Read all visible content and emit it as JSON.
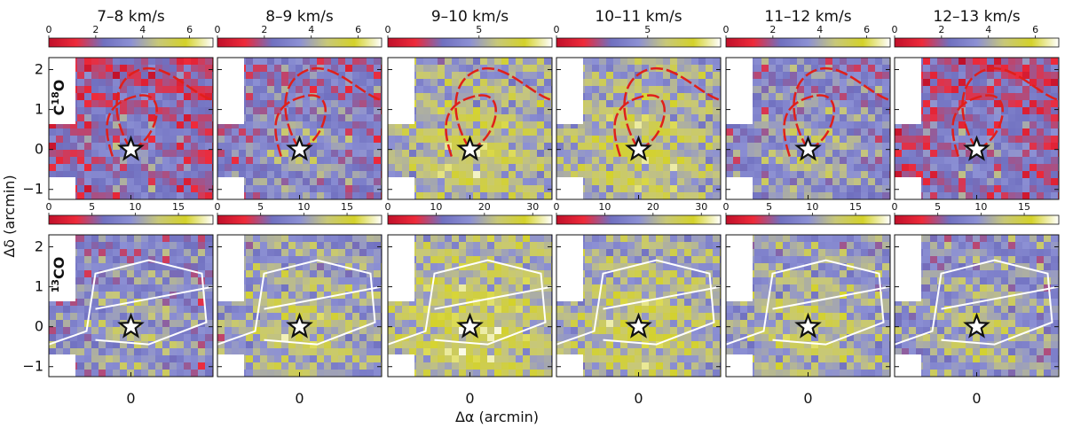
{
  "figure": {
    "x_label": "Δα (arcmin)",
    "y_label": "Δδ (arcmin)",
    "x_tick": "0",
    "y_ticks": [
      "2",
      "1",
      "0",
      "−1"
    ]
  },
  "chart_data": {
    "type": "heatmap",
    "x_range": [
      -1.2,
      1.2
    ],
    "y_range": [
      -1.25,
      2.3
    ],
    "velocity_channels": [
      "7–8 km/s",
      "8–9 km/s",
      "9–10 km/s",
      "10–11 km/s",
      "11–12 km/s",
      "12–13 km/s"
    ],
    "rows": [
      {
        "molecule_base": "C",
        "molecule_sup": "18",
        "molecule_rest": "O",
        "colorbar_ticks": [
          [
            "0",
            "2",
            "4",
            "6"
          ],
          [
            "0",
            "2",
            "4",
            "6"
          ],
          [
            "0",
            "5"
          ],
          [
            "0",
            "5"
          ],
          [
            "0",
            "2",
            "4",
            "6"
          ],
          [
            "0",
            "2",
            "4",
            "6"
          ]
        ],
        "colorbar_max": [
          7,
          7,
          9,
          9,
          7,
          7
        ],
        "mean_level": [
          0.25,
          0.35,
          0.55,
          0.55,
          0.4,
          0.25
        ]
      },
      {
        "molecule_base": "CO",
        "molecule_sup": "13",
        "colorbar_ticks": [
          [
            "0",
            "5",
            "10",
            "15"
          ],
          [
            "0",
            "5",
            "10",
            "15"
          ],
          [
            "0",
            "10",
            "20",
            "30"
          ],
          [
            "0",
            "10",
            "20",
            "30"
          ],
          [
            "0",
            "5",
            "10",
            "15"
          ],
          [
            "0",
            "5",
            "10",
            "15"
          ]
        ],
        "colorbar_max": [
          19,
          19,
          34,
          34,
          19,
          19
        ],
        "mean_level": [
          0.4,
          0.5,
          0.6,
          0.55,
          0.5,
          0.45
        ]
      }
    ],
    "star_position": [
      0,
      0
    ],
    "colormap": [
      "#c0102a",
      "#ee2a3a",
      "#7070c0",
      "#8c90d4",
      "#c8c878",
      "#d4d22a",
      "#ffffff"
    ],
    "spiral_color": "#e0201a",
    "outline_color": "#ffffff"
  }
}
